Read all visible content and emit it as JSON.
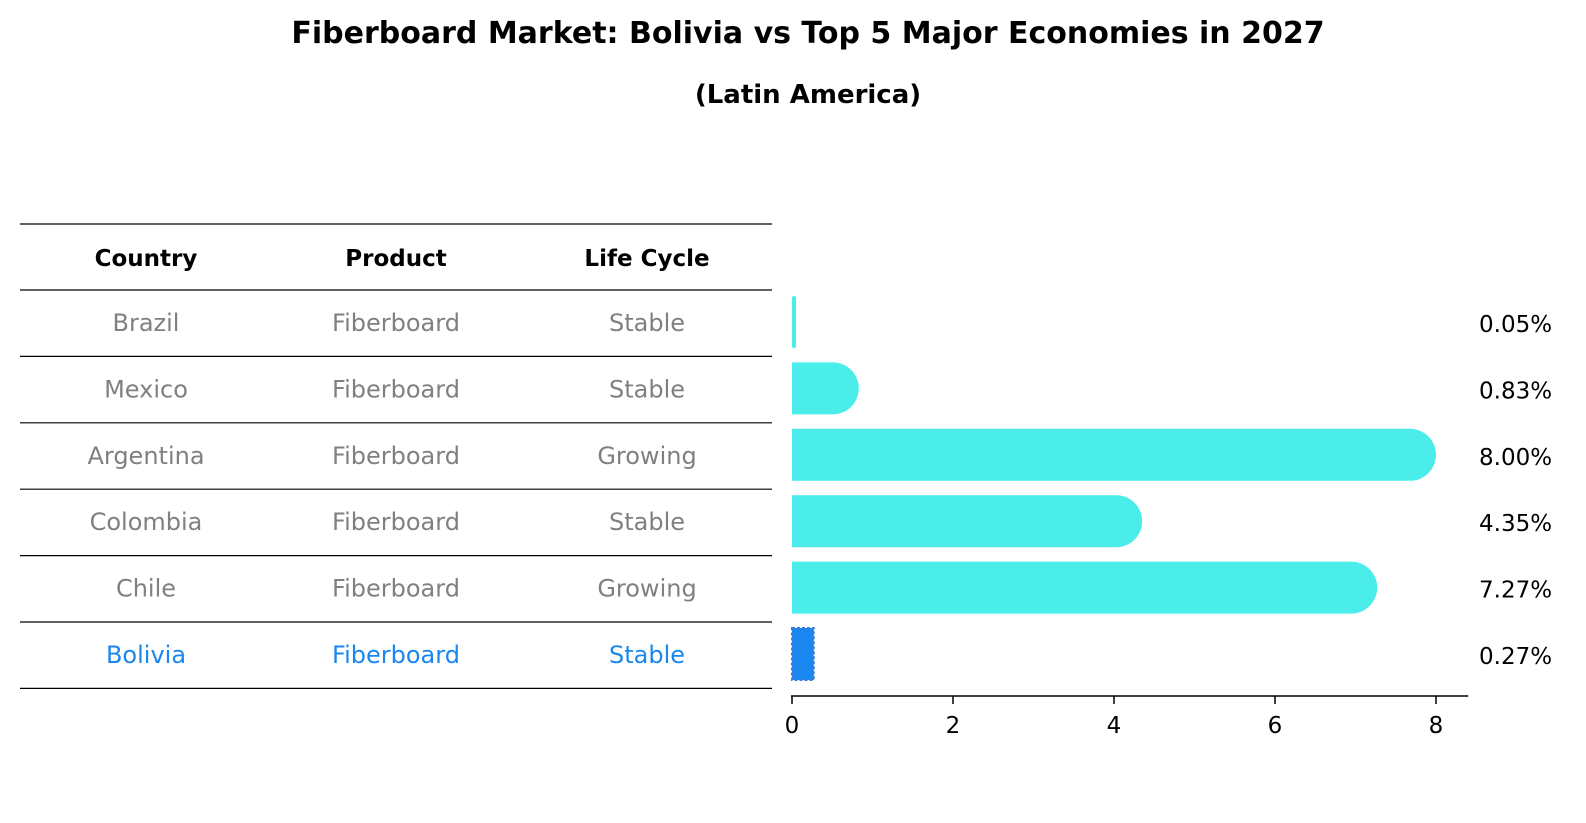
{
  "chart_data": {
    "type": "bar",
    "orientation": "horizontal",
    "title": "Fiberboard Market: Bolivia vs Top 5 Major Economies in 2027",
    "subtitle": "(Latin America)",
    "table": {
      "columns": [
        "Country",
        "Product",
        "Life Cycle"
      ],
      "rows": [
        {
          "country": "Brazil",
          "product": "Fiberboard",
          "life_cycle": "Stable",
          "highlight": false
        },
        {
          "country": "Mexico",
          "product": "Fiberboard",
          "life_cycle": "Stable",
          "highlight": false
        },
        {
          "country": "Argentina",
          "product": "Fiberboard",
          "life_cycle": "Growing",
          "highlight": false
        },
        {
          "country": "Colombia",
          "product": "Fiberboard",
          "life_cycle": "Stable",
          "highlight": false
        },
        {
          "country": "Chile",
          "product": "Fiberboard",
          "life_cycle": "Growing",
          "highlight": false
        },
        {
          "country": "Bolivia",
          "product": "Fiberboard",
          "life_cycle": "Stable",
          "highlight": true
        }
      ]
    },
    "categories": [
      "Brazil",
      "Mexico",
      "Argentina",
      "Colombia",
      "Chile",
      "Bolivia"
    ],
    "values": [
      0.05,
      0.83,
      8.0,
      4.35,
      7.27,
      0.27
    ],
    "value_labels": [
      "0.05%",
      "0.83%",
      "8.00%",
      "4.35%",
      "7.27%",
      "0.27%"
    ],
    "xlim": [
      0,
      8.4
    ],
    "xticks": [
      0,
      2,
      4,
      6,
      8
    ],
    "grid": false,
    "colors": {
      "bar": "#4bedea",
      "highlight_bar": "#1a87f0",
      "highlight_text": "#1a87f0",
      "table_text": "#808080",
      "header_text": "#000000",
      "rule": "#000000"
    }
  }
}
